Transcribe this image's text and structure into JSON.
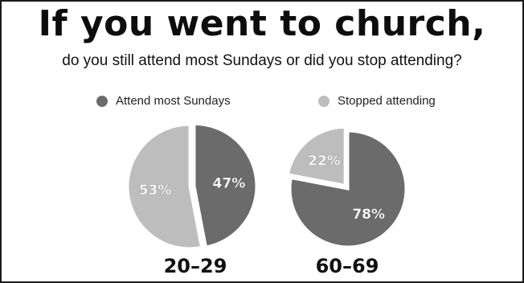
{
  "title": "If you went to church,",
  "subtitle": "do you still attend most Sundays or did you stop attending?",
  "legend": [
    {
      "label": "Attend most Sundays",
      "color": "#6b6b6b"
    },
    {
      "label": "Stopped attending",
      "color": "#bdbdbd"
    }
  ],
  "chart_data": [
    {
      "type": "pie",
      "title": "20–29",
      "slices": [
        {
          "label": "Attend most Sundays",
          "value": 47,
          "display": "47%",
          "color": "#6b6b6b",
          "exploded": true
        },
        {
          "label": "Stopped attending",
          "value": 53,
          "display": "53%",
          "color": "#bdbdbd",
          "exploded": false
        }
      ]
    },
    {
      "type": "pie",
      "title": "60–69",
      "slices": [
        {
          "label": "Attend most Sundays",
          "value": 78,
          "display": "78%",
          "color": "#6b6b6b",
          "exploded": false
        },
        {
          "label": "Stopped attending",
          "value": 22,
          "display": "22%",
          "color": "#bdbdbd",
          "exploded": true
        }
      ]
    }
  ]
}
